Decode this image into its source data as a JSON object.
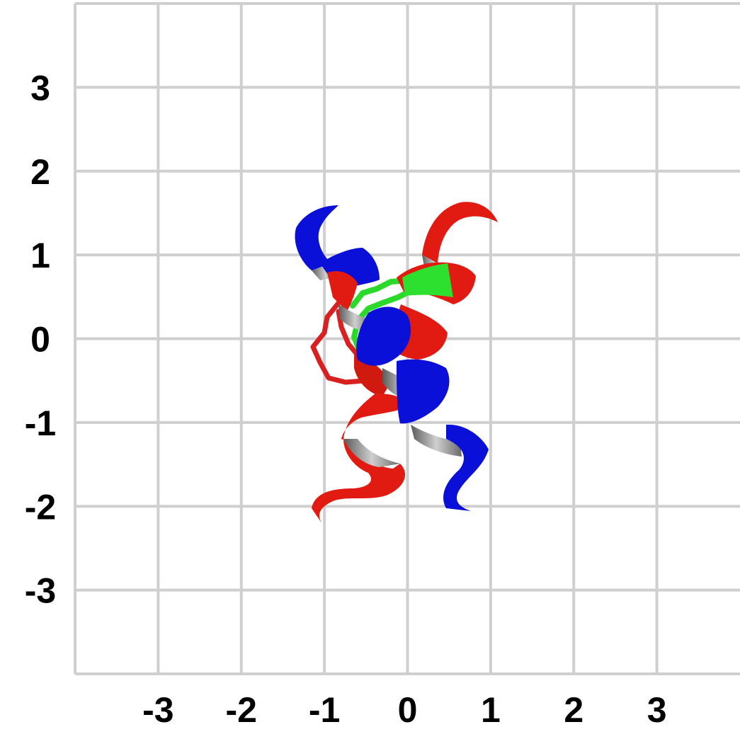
{
  "grid": {
    "line_color": "#cfcfcf",
    "x_range": [
      -4,
      4
    ],
    "y_range": [
      -4,
      4
    ],
    "x_ticks": [
      "-3",
      "-2",
      "-1",
      "0",
      "1",
      "2",
      "3"
    ],
    "y_ticks": [
      "3",
      "2",
      "1",
      "0",
      "-1",
      "-2",
      "-3"
    ]
  },
  "structure": {
    "depiction": "protein ribbon",
    "helix_colors": {
      "helix_a": "#0a10d8",
      "helix_b": "#e21b12",
      "sidechain_green": "#2ee02e",
      "sidechain_red": "#e02a2a",
      "inner_face": "#8c8c8c"
    }
  }
}
